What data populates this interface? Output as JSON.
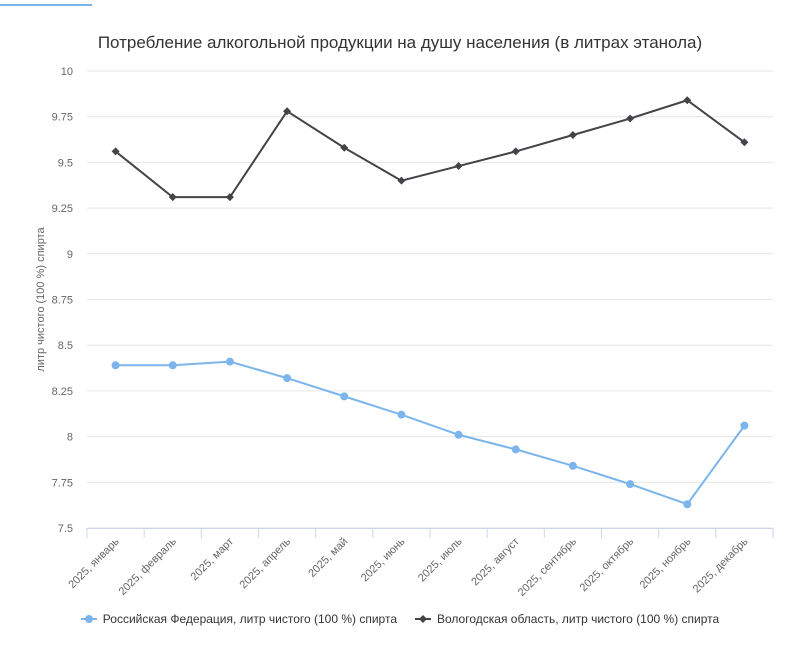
{
  "chart_data": {
    "type": "line",
    "title": "Потребление алкогольной продукции на душу населения (в литрах этанола)",
    "xlabel": "",
    "ylabel": "литр чистого (100 %) спирта",
    "ylim": [
      7.5,
      10
    ],
    "yticks": [
      "7.5",
      "7.75",
      "8",
      "8.25",
      "8.5",
      "8.75",
      "9",
      "9.25",
      "9.5",
      "9.75",
      "10"
    ],
    "grid": true,
    "legend_position": "bottom",
    "categories": [
      "2025, январь",
      "2025, февраль",
      "2025, март",
      "2025, апрель",
      "2025, май",
      "2025, июнь",
      "2025, июль",
      "2025, август",
      "2025, сентябрь",
      "2025, октябрь",
      "2025, ноябрь",
      "2025, декабрь"
    ],
    "series": [
      {
        "name": "Российская Федерация, литр чистого (100 %) спирта",
        "color": "#7cb5ec",
        "marker": "circle",
        "values": [
          8.39,
          8.39,
          8.41,
          8.32,
          8.22,
          8.12,
          8.01,
          7.93,
          7.84,
          7.74,
          7.63,
          8.06
        ]
      },
      {
        "name": "Вологодская область, литр чистого (100 %) спирта",
        "color": "#434348",
        "marker": "diamond",
        "values": [
          9.56,
          9.31,
          9.31,
          9.78,
          9.58,
          9.4,
          9.48,
          9.56,
          9.65,
          9.74,
          9.84,
          9.61
        ]
      }
    ]
  }
}
